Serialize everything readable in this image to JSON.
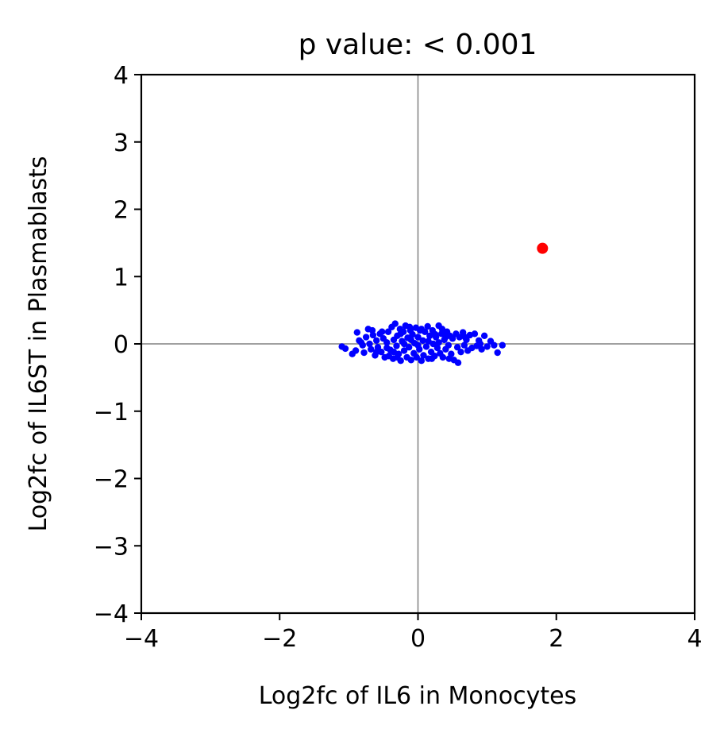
{
  "chart_data": {
    "type": "scatter",
    "title": "p value: < 0.001",
    "xlabel": "Log2fc of IL6 in Monocytes",
    "ylabel": "Log2fc of IL6ST in Plasmablasts",
    "xlim": [
      -4,
      4
    ],
    "ylim": [
      -4,
      4
    ],
    "xticks": [
      -4,
      -2,
      0,
      2,
      4
    ],
    "yticks": [
      -4,
      -3,
      -2,
      -1,
      0,
      1,
      2,
      3,
      4
    ],
    "xtick_labels": [
      "−4",
      "−2",
      "0",
      "2",
      "4"
    ],
    "ytick_labels": [
      "−4",
      "−3",
      "−2",
      "−1",
      "0",
      "1",
      "2",
      "3",
      "4"
    ],
    "reference_lines": {
      "x": 0,
      "y": 0,
      "color": "#808080"
    },
    "grid": false,
    "series": [
      {
        "color": "#0000ff",
        "points": [
          [
            -1.1,
            -0.04
          ],
          [
            -1.05,
            -0.07
          ],
          [
            -0.9,
            -0.1
          ],
          [
            -0.88,
            0.17
          ],
          [
            -0.85,
            0.05
          ],
          [
            -0.8,
            -0.02
          ],
          [
            -0.78,
            -0.13
          ],
          [
            -0.75,
            0.1
          ],
          [
            -0.72,
            0.22
          ],
          [
            -0.7,
            0.0
          ],
          [
            -0.68,
            -0.08
          ],
          [
            -0.65,
            0.13
          ],
          [
            -0.62,
            -0.17
          ],
          [
            -0.6,
            0.05
          ],
          [
            -0.58,
            -0.05
          ],
          [
            -0.55,
            0.15
          ],
          [
            -0.53,
            -0.12
          ],
          [
            -0.5,
            0.08
          ],
          [
            -0.48,
            -0.2
          ],
          [
            -0.45,
            0.02
          ],
          [
            -0.43,
            0.18
          ],
          [
            -0.4,
            -0.09
          ],
          [
            -0.38,
            0.25
          ],
          [
            -0.36,
            -0.22
          ],
          [
            -0.35,
            0.06
          ],
          [
            -0.33,
            0.3
          ],
          [
            -0.31,
            -0.03
          ],
          [
            -0.3,
            0.12
          ],
          [
            -0.28,
            -0.15
          ],
          [
            -0.26,
            0.22
          ],
          [
            -0.25,
            -0.25
          ],
          [
            -0.23,
            0.04
          ],
          [
            -0.21,
            0.18
          ],
          [
            -0.2,
            -0.1
          ],
          [
            -0.18,
            0.27
          ],
          [
            -0.16,
            -0.2
          ],
          [
            -0.15,
            0.09
          ],
          [
            -0.13,
            -0.05
          ],
          [
            -0.11,
            0.2
          ],
          [
            -0.1,
            -0.24
          ],
          [
            -0.08,
            0.14
          ],
          [
            -0.06,
            -0.14
          ],
          [
            -0.05,
            0.01
          ],
          [
            -0.03,
            0.24
          ],
          [
            -0.02,
            -0.2
          ],
          [
            0.0,
            0.1
          ],
          [
            0.02,
            -0.08
          ],
          [
            0.03,
            0.2
          ],
          [
            0.05,
            -0.25
          ],
          [
            0.07,
            0.05
          ],
          [
            0.08,
            -0.17
          ],
          [
            0.1,
            0.18
          ],
          [
            0.12,
            -0.04
          ],
          [
            0.14,
            0.26
          ],
          [
            0.15,
            -0.22
          ],
          [
            0.17,
            0.12
          ],
          [
            0.19,
            -0.12
          ],
          [
            0.21,
            0.2
          ],
          [
            0.22,
            0.0
          ],
          [
            0.24,
            -0.18
          ],
          [
            0.26,
            0.1
          ],
          [
            0.28,
            -0.06
          ],
          [
            0.3,
            0.27
          ],
          [
            0.32,
            -0.14
          ],
          [
            0.34,
            0.15
          ],
          [
            0.36,
            -0.2
          ],
          [
            0.38,
            0.06
          ],
          [
            0.4,
            -0.08
          ],
          [
            0.42,
            0.18
          ],
          [
            0.44,
            -0.02
          ],
          [
            0.46,
            0.12
          ],
          [
            0.48,
            -0.15
          ],
          [
            0.5,
            0.08
          ],
          [
            0.52,
            -0.24
          ],
          [
            0.55,
            0.15
          ],
          [
            0.57,
            -0.05
          ],
          [
            0.6,
            0.1
          ],
          [
            0.62,
            -0.12
          ],
          [
            0.65,
            0.17
          ],
          [
            0.67,
            -0.02
          ],
          [
            0.7,
            0.06
          ],
          [
            0.72,
            -0.1
          ],
          [
            0.75,
            0.13
          ],
          [
            0.78,
            -0.06
          ],
          [
            0.82,
            0.15
          ],
          [
            0.85,
            -0.03
          ],
          [
            0.88,
            0.05
          ],
          [
            0.92,
            -0.08
          ],
          [
            0.96,
            0.12
          ],
          [
            1.0,
            -0.04
          ],
          [
            1.05,
            0.04
          ],
          [
            1.1,
            -0.02
          ],
          [
            1.15,
            -0.13
          ],
          [
            1.22,
            -0.02
          ],
          [
            -0.95,
            -0.15
          ],
          [
            -0.82,
            0.02
          ],
          [
            -0.66,
            0.2
          ],
          [
            -0.52,
            0.18
          ],
          [
            -0.42,
            -0.18
          ],
          [
            -0.3,
            -0.2
          ],
          [
            -0.12,
            0.25
          ],
          [
            0.05,
            0.22
          ],
          [
            0.2,
            -0.22
          ],
          [
            0.35,
            0.22
          ],
          [
            0.58,
            -0.28
          ],
          [
            0.45,
            -0.22
          ],
          [
            -0.2,
            0.0
          ],
          [
            0.0,
            -0.02
          ],
          [
            0.15,
            0.04
          ],
          [
            -0.45,
            -0.06
          ],
          [
            0.3,
            0.02
          ],
          [
            0.68,
            0.1
          ],
          [
            -0.6,
            -0.12
          ],
          [
            0.9,
            0.0
          ],
          [
            -0.35,
            -0.12
          ],
          [
            -0.1,
            0.06
          ],
          [
            0.25,
            0.14
          ],
          [
            0.4,
            0.1
          ],
          [
            -0.25,
            0.15
          ]
        ]
      },
      {
        "color": "#ff0000",
        "points": [
          [
            1.8,
            1.42
          ]
        ]
      }
    ]
  }
}
